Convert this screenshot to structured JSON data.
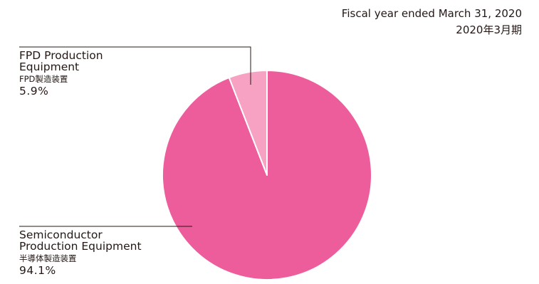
{
  "header": {
    "line1": "Fiscal year ended March 31, 2020",
    "line2": "2020年3月期"
  },
  "chart_data": {
    "type": "pie",
    "slices": [
      {
        "label_en": "Semiconductor Production Equipment",
        "label_jp": "半導体製造装置",
        "value": 94.1,
        "value_label": "94.1%",
        "color": "#ee5d9b"
      },
      {
        "label_en": "FPD Production Equipment",
        "label_jp": "FPD製造装置",
        "value": 5.9,
        "value_label": "5.9%",
        "color": "#f7a2c3"
      }
    ]
  },
  "labels": {
    "fpd": {
      "en_line1": "FPD Production",
      "en_line2": "Equipment"
    },
    "semi": {
      "en_line1": "Semiconductor",
      "en_line2": "Production Equipment"
    }
  }
}
